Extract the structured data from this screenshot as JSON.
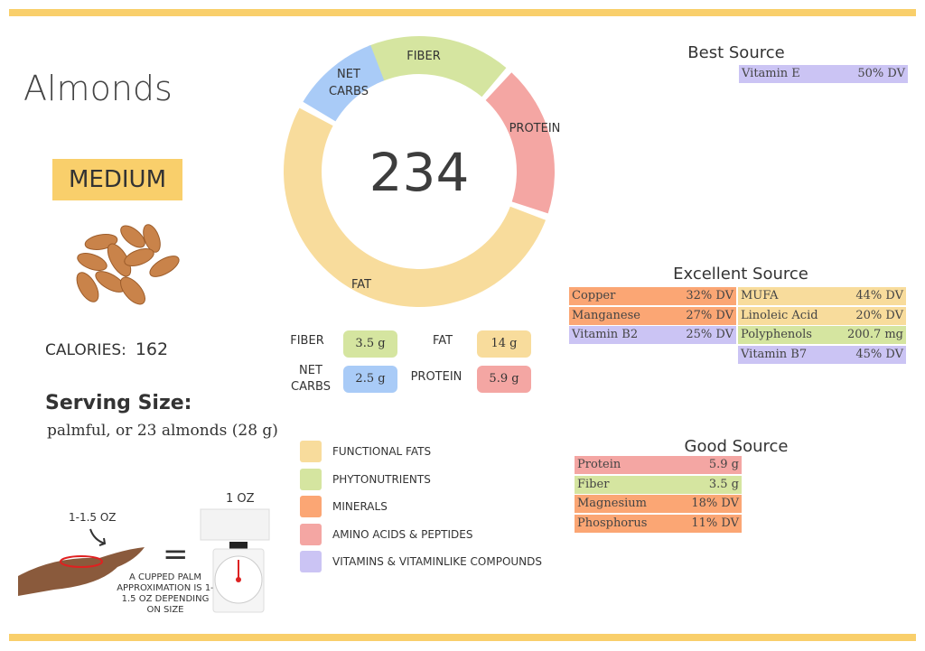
{
  "colors": {
    "fat": "#f8dc9c",
    "fiber": "#d5e5a0",
    "minerals": "#fba674",
    "protein": "#f4a6a3",
    "vitamins": "#cbc4f4",
    "carbs": "#a9cbf7",
    "accent": "#f9cf6b"
  },
  "title": "Almonds",
  "level": "MEDIUM",
  "calories": {
    "label": "CALORIES:",
    "value": "162"
  },
  "serving": {
    "title": "Serving Size:",
    "text": "palmful, or 23 almonds (28 g)"
  },
  "donut": {
    "center": "234",
    "segments": [
      {
        "label": "FIBER",
        "color": "#d5e5a0"
      },
      {
        "label": "PROTEIN",
        "color": "#f4a6a3"
      },
      {
        "label": "FAT",
        "color": "#f8dc9c"
      },
      {
        "label": "NET CARBS",
        "color": "#a9cbf7"
      }
    ]
  },
  "macros": {
    "fiber": {
      "label": "FIBER",
      "value": "3.5 g"
    },
    "fat": {
      "label": "FAT",
      "value": "14 g"
    },
    "net_carbs": {
      "label": "NET CARBS",
      "value": "2.5 g"
    },
    "protein": {
      "label": "PROTEIN",
      "value": "5.9 g"
    }
  },
  "best": {
    "title": "Best Source",
    "rows": [
      {
        "name": "Vitamin E",
        "value": "50% DV",
        "color": "#cbc4f4"
      }
    ]
  },
  "excellent": {
    "title": "Excellent Source",
    "left": [
      {
        "name": "Copper",
        "value": "32% DV",
        "color": "#fba674"
      },
      {
        "name": "Manganese",
        "value": "27% DV",
        "color": "#fba674"
      },
      {
        "name": "Vitamin B2",
        "value": "25% DV",
        "color": "#cbc4f4"
      }
    ],
    "right": [
      {
        "name": "MUFA",
        "value": "44% DV",
        "color": "#f8dc9c"
      },
      {
        "name": "Linoleic Acid",
        "value": "20% DV",
        "color": "#f8dc9c"
      },
      {
        "name": "Polyphenols",
        "value": "200.7 mg",
        "color": "#d5e5a0"
      },
      {
        "name": "Vitamin B7",
        "value": "45% DV",
        "color": "#cbc4f4"
      }
    ]
  },
  "good": {
    "title": "Good Source",
    "rows": [
      {
        "name": "Protein",
        "value": "5.9 g",
        "color": "#f4a6a3"
      },
      {
        "name": "Fiber",
        "value": "3.5 g",
        "color": "#d5e5a0"
      },
      {
        "name": "Magnesium",
        "value": "18% DV",
        "color": "#fba674"
      },
      {
        "name": "Phosphorus",
        "value": "11% DV",
        "color": "#fba674"
      }
    ]
  },
  "legend": [
    {
      "label": "FUNCTIONAL  FATS",
      "color": "#f8dc9c"
    },
    {
      "label": "PHYTONUTRIENTS",
      "color": "#d5e5a0"
    },
    {
      "label": "MINERALS",
      "color": "#fba674"
    },
    {
      "label": "AMINO ACIDS & PEPTIDES",
      "color": "#f4a6a3"
    },
    {
      "label": "VITAMINS & VITAMINLIKE COMPOUNDS",
      "color": "#cbc4f4"
    }
  ],
  "portion": {
    "hand_label": "1-1.5 OZ",
    "equals": "=",
    "scale_label": "1 OZ",
    "note": "A CUPPED PALM APPROXIMATION IS 1-1.5 OZ DEPENDING ON SIZE"
  }
}
